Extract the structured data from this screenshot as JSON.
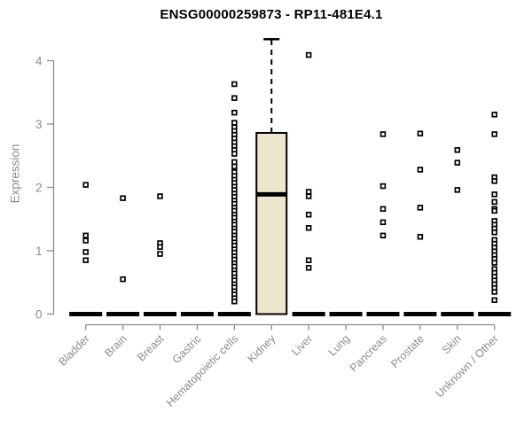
{
  "chart_data": {
    "type": "boxplot",
    "title": "ENSG00000259873 - RP11-481E4.1",
    "ylabel": "Expression",
    "ylim": [
      0,
      4.4
    ],
    "yticks": [
      0,
      1,
      2,
      3,
      4
    ],
    "grid": false,
    "legend": "none",
    "colors": {
      "box_fill": "#ECE7CD",
      "box_stroke": "#000000",
      "median": "#000000",
      "axis": "#8C8C8C",
      "point_stroke": "#000000",
      "point_fill": "#FFFFFF",
      "background": "#FFFFFF"
    },
    "groups": [
      {
        "name": "Bladder",
        "median": 0,
        "points": [
          2.04,
          1.24,
          1.16,
          0.98,
          0.85
        ]
      },
      {
        "name": "Brain",
        "median": 0,
        "points": [
          1.83,
          0.55
        ]
      },
      {
        "name": "Breast",
        "median": 0,
        "points": [
          1.86,
          1.12,
          1.06,
          0.95
        ]
      },
      {
        "name": "Gastric",
        "median": 0,
        "points": []
      },
      {
        "name": "Hematopoietic cells",
        "median": 0,
        "points": [
          3.63,
          3.41,
          3.18,
          3.02,
          2.95,
          2.89,
          2.83,
          2.77,
          2.71,
          2.65,
          2.59,
          2.53,
          2.4,
          2.33,
          2.24,
          2.18,
          2.12,
          2.07,
          2.01,
          1.96,
          1.9,
          1.85,
          1.79,
          1.74,
          1.68,
          1.63,
          1.57,
          1.52,
          1.46,
          1.41,
          1.35,
          1.3,
          1.24,
          1.19,
          1.13,
          1.08,
          1.02,
          0.97,
          0.91,
          0.86,
          0.8,
          0.75,
          0.69,
          0.64,
          0.58,
          0.53,
          0.47,
          0.42,
          0.36,
          0.31,
          0.25,
          0.2
        ]
      },
      {
        "name": "Kidney",
        "median": 1.89,
        "box": {
          "q1": 0.0,
          "q3": 2.86,
          "whisker_low": 0.0,
          "whisker_high": 4.34
        },
        "points": []
      },
      {
        "name": "Liver",
        "median": 0,
        "points": [
          4.09,
          1.93,
          1.86,
          1.57,
          1.36,
          0.85,
          0.73
        ]
      },
      {
        "name": "Lung",
        "median": 0,
        "points": []
      },
      {
        "name": "Pancreas",
        "median": 0,
        "points": [
          2.84,
          2.02,
          1.66,
          1.45,
          1.24
        ]
      },
      {
        "name": "Prostate",
        "median": 0,
        "points": [
          2.85,
          2.28,
          1.68,
          1.22
        ]
      },
      {
        "name": "Skin",
        "median": 0,
        "points": [
          2.59,
          2.39,
          1.96
        ]
      },
      {
        "name": "Unknown / Other",
        "median": 0,
        "points": [
          3.15,
          2.84,
          2.16,
          2.1,
          1.89,
          1.77,
          1.66,
          1.63,
          1.47,
          1.41,
          1.35,
          1.29,
          1.17,
          1.11,
          1.05,
          0.99,
          0.93,
          0.87,
          0.81,
          0.71,
          0.65,
          0.59,
          0.53,
          0.47,
          0.41,
          0.35,
          0.22
        ]
      }
    ]
  }
}
